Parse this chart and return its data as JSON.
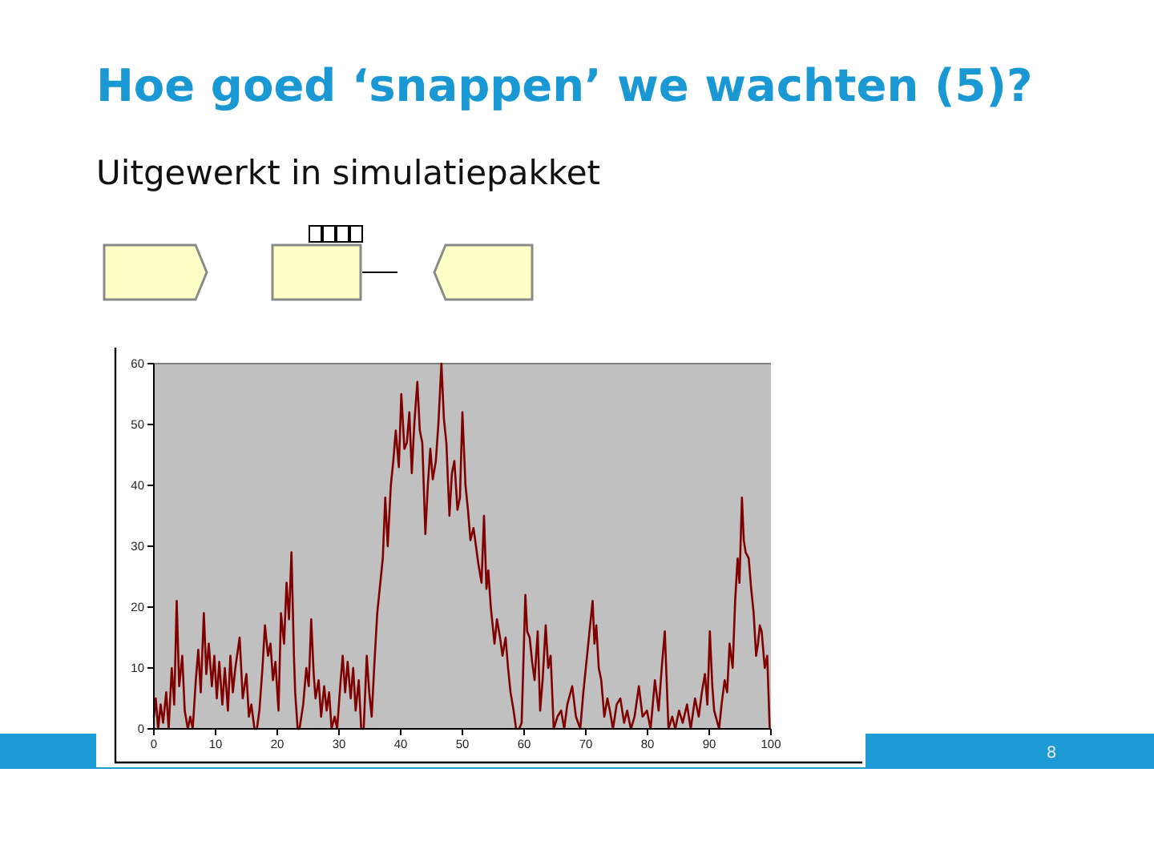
{
  "chart_data": {
    "type": "line",
    "title": "Hoe goed ‘snappen’ we wachten (5)?",
    "subtitle": "Uitgewerkt in simulatiepakket",
    "x": [
      0,
      0.3,
      0.7,
      1.1,
      1.5,
      2.0,
      2.4,
      2.9,
      3.3,
      3.7,
      4.1,
      4.6,
      5.0,
      5.5,
      5.9,
      6.3,
      6.8,
      7.2,
      7.6,
      8.1,
      8.5,
      8.9,
      9.4,
      9.8,
      10.2,
      10.6,
      11.1,
      11.5,
      12.0,
      12.4,
      12.8,
      13.2,
      13.9,
      14.4,
      15.0,
      15.4,
      15.8,
      16.3,
      16.7,
      17.1,
      17.6,
      18.0,
      18.5,
      18.9,
      19.3,
      19.7,
      20.2,
      20.6,
      21.1,
      21.5,
      21.9,
      22.3,
      22.7,
      22.9,
      23.3,
      23.6,
      24.2,
      24.7,
      25.1,
      25.5,
      25.9,
      26.2,
      26.7,
      27.1,
      27.6,
      28.0,
      28.4,
      28.8,
      29.3,
      29.7,
      30.2,
      30.6,
      31.0,
      31.4,
      31.9,
      32.3,
      32.7,
      33.2,
      33.6,
      34.0,
      34.5,
      34.9,
      35.3,
      35.7,
      36.2,
      36.6,
      37.1,
      37.5,
      37.9,
      38.4,
      38.8,
      39.2,
      39.7,
      40.1,
      40.6,
      41.0,
      41.4,
      41.8,
      42.2,
      42.7,
      43.1,
      43.5,
      44.0,
      44.4,
      44.8,
      45.2,
      45.7,
      46.1,
      46.6,
      47.0,
      47.4,
      47.9,
      48.3,
      48.7,
      49.2,
      49.6,
      50.0,
      50.5,
      50.9,
      51.3,
      51.8,
      52.2,
      52.6,
      53.1,
      53.5,
      53.9,
      54.2,
      54.6,
      55.2,
      55.6,
      56.1,
      56.5,
      57.0,
      57.4,
      57.8,
      58.3,
      58.7,
      59.2,
      59.6,
      60.2,
      60.5,
      60.9,
      61.3,
      61.7,
      62.2,
      62.6,
      63.0,
      63.5,
      63.9,
      64.3,
      64.8,
      65.4,
      66.0,
      66.5,
      67.0,
      67.8,
      68.4,
      69.1,
      69.6,
      70.2,
      70.6,
      71.1,
      71.4,
      71.7,
      72.1,
      72.5,
      73.0,
      73.5,
      73.9,
      74.4,
      75.0,
      75.6,
      76.2,
      76.7,
      77.3,
      77.9,
      78.6,
      79.2,
      79.9,
      80.5,
      81.2,
      81.8,
      82.3,
      82.8,
      83.4,
      84.0,
      84.5,
      85.1,
      85.7,
      86.4,
      87.0,
      87.7,
      88.3,
      88.8,
      89.3,
      89.7,
      90.1,
      90.5,
      90.8,
      91.6,
      92.0,
      92.5,
      92.9,
      93.3,
      93.8,
      94.2,
      94.6,
      94.9,
      95.3,
      95.6,
      95.9,
      96.4,
      96.8,
      97.2,
      97.6,
      97.9,
      98.2,
      98.5,
      99.0,
      99.4,
      99.8
    ],
    "series": [
      {
        "color": "#800000",
        "values": [
          2,
          5,
          0,
          4,
          1,
          6,
          0,
          10,
          4,
          21,
          7,
          12,
          3,
          0,
          2,
          0,
          8,
          13,
          6,
          19,
          9,
          14,
          7,
          12,
          5,
          11,
          4,
          10,
          3,
          12,
          6,
          10,
          15,
          5,
          9,
          2,
          4,
          0,
          0,
          3,
          10,
          17,
          12,
          14,
          8,
          11,
          3,
          19,
          14,
          24,
          18,
          29,
          12,
          6,
          0,
          0,
          4,
          10,
          7,
          18,
          9,
          5,
          8,
          2,
          7,
          3,
          6,
          0,
          2,
          0,
          7,
          12,
          6,
          11,
          5,
          10,
          3,
          8,
          0,
          0,
          12,
          6,
          2,
          10,
          19,
          23,
          28,
          38,
          30,
          40,
          44,
          49,
          43,
          55,
          46,
          47,
          52,
          42,
          50,
          57,
          49,
          47,
          32,
          40,
          46,
          41,
          44,
          50,
          60,
          51,
          47,
          35,
          42,
          44,
          36,
          38,
          52,
          40,
          36,
          31,
          33,
          30,
          27,
          24,
          35,
          23,
          26,
          20,
          14,
          18,
          15,
          12,
          15,
          10,
          6,
          3,
          0,
          0,
          1,
          22,
          16,
          15,
          11,
          8,
          16,
          3,
          8,
          17,
          10,
          12,
          0,
          2,
          3,
          0,
          4,
          7,
          2,
          0,
          6,
          12,
          16,
          21,
          14,
          17,
          10,
          8,
          2,
          5,
          3,
          0,
          4,
          5,
          1,
          3,
          0,
          2,
          7,
          2,
          3,
          0,
          8,
          3,
          10,
          16,
          0,
          2,
          0,
          3,
          1,
          4,
          0,
          5,
          2,
          6,
          9,
          4,
          16,
          7,
          3,
          0,
          4,
          8,
          6,
          14,
          10,
          21,
          28,
          24,
          38,
          31,
          29,
          28,
          23,
          19,
          12,
          14,
          17,
          16,
          10,
          12,
          0
        ]
      }
    ],
    "xlim": [
      0,
      100
    ],
    "xticks": [
      0,
      10,
      20,
      30,
      40,
      50,
      60,
      70,
      80,
      90,
      100
    ],
    "ylim": [
      0,
      60
    ],
    "yticks": [
      0,
      10,
      20,
      30,
      40,
      50,
      60
    ],
    "annotations": [
      "8"
    ]
  }
}
